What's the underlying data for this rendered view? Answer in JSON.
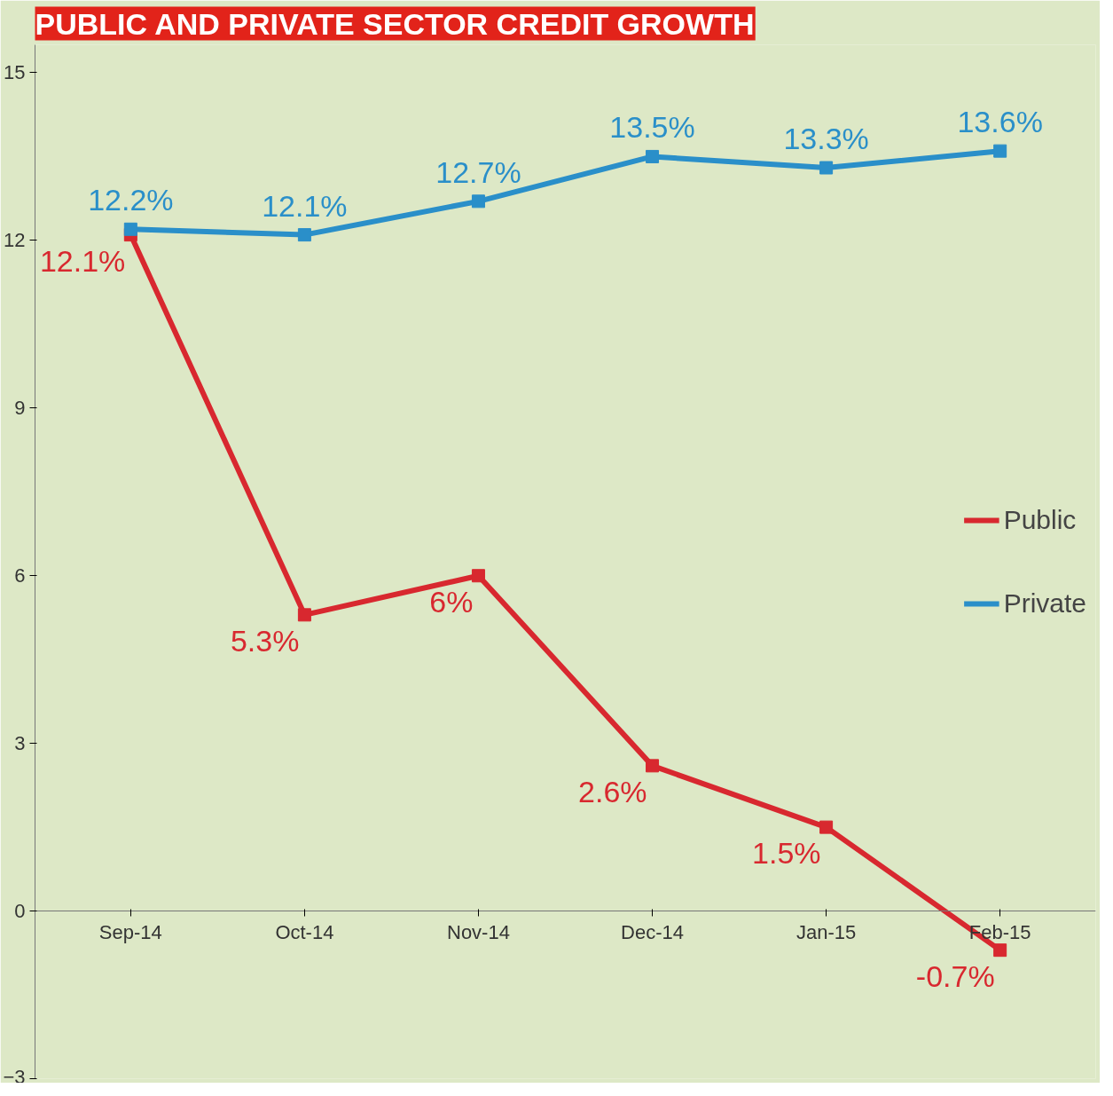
{
  "chart_data": {
    "type": "line",
    "title": "PUBLIC AND PRIVATE SECTOR CREDIT GROWTH",
    "categories": [
      "Sep-14",
      "Oct-14",
      "Nov-14",
      "Dec-14",
      "Jan-15",
      "Feb-15"
    ],
    "series": [
      {
        "name": "Public",
        "color": "#d8282f",
        "values": [
          12.1,
          5.3,
          6,
          2.6,
          1.5,
          -0.7
        ],
        "value_labels": [
          "12.1%",
          "5.3%",
          "6%",
          "2.6%",
          "1.5%",
          "-0.7%"
        ]
      },
      {
        "name": "Private",
        "color": "#2a8fc9",
        "values": [
          12.2,
          12.1,
          12.7,
          13.5,
          13.3,
          13.6
        ],
        "value_labels": [
          "12.2%",
          "12.1%",
          "12.7%",
          "13.5%",
          "13.3%",
          "13.6%"
        ]
      }
    ],
    "ylim": [
      -3,
      15.5
    ],
    "yticks": [
      -3,
      0,
      3,
      6,
      9,
      12,
      15
    ],
    "grid": false,
    "legend": "right",
    "marker": "square",
    "line_style": "solid"
  }
}
